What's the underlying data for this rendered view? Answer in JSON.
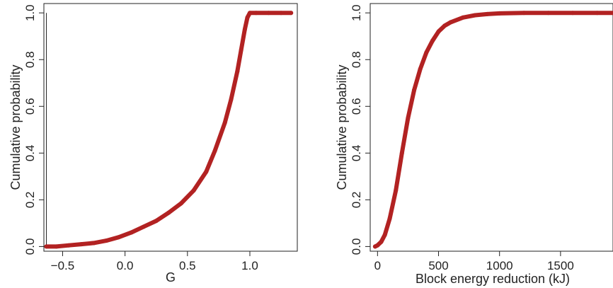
{
  "chart_data": [
    {
      "type": "line",
      "title": "",
      "xlabel": "G",
      "ylabel": "Cumulative probability",
      "xlim": [
        -0.65,
        1.38
      ],
      "ylim": [
        -0.02,
        1.04
      ],
      "xticks": [
        -0.5,
        0.0,
        0.5,
        1.0
      ],
      "xtick_labels": [
        "−0.5",
        "0.0",
        "0.5",
        "1.0"
      ],
      "yticks": [
        0.0,
        0.2,
        0.4,
        0.6,
        0.8,
        1.0
      ],
      "ytick_labels": [
        "0.0",
        "0.2",
        "0.4",
        "0.6",
        "0.8",
        "1.0"
      ],
      "grid": false,
      "series_color": "#b22222",
      "vertical_line_x": -0.63,
      "x": [
        -0.63,
        -0.55,
        -0.45,
        -0.35,
        -0.25,
        -0.15,
        -0.05,
        0.05,
        0.15,
        0.25,
        0.35,
        0.45,
        0.55,
        0.65,
        0.72,
        0.8,
        0.85,
        0.9,
        0.93,
        0.96,
        0.98,
        1.0,
        1.05,
        1.15,
        1.25,
        1.33
      ],
      "y": [
        0.0,
        0.0,
        0.005,
        0.01,
        0.015,
        0.025,
        0.04,
        0.06,
        0.085,
        0.11,
        0.145,
        0.185,
        0.24,
        0.32,
        0.41,
        0.53,
        0.63,
        0.75,
        0.84,
        0.93,
        0.98,
        1.0,
        1.0,
        1.0,
        1.0,
        1.0
      ]
    },
    {
      "type": "line",
      "title": "",
      "xlabel": "Block energy reduction (kJ)",
      "ylabel": "Cumulative probability",
      "xlim": [
        -60,
        1930
      ],
      "ylim": [
        -0.02,
        1.04
      ],
      "xticks": [
        0,
        500,
        1000,
        1500
      ],
      "xtick_labels": [
        "0",
        "500",
        "1000",
        "1500"
      ],
      "yticks": [
        0.0,
        0.2,
        0.4,
        0.6,
        0.8,
        1.0
      ],
      "ytick_labels": [
        "0.0",
        "0.2",
        "0.4",
        "0.6",
        "0.8",
        "1.0"
      ],
      "grid": false,
      "series_color": "#b22222",
      "x": [
        -20,
        0,
        30,
        60,
        100,
        150,
        200,
        250,
        300,
        350,
        400,
        450,
        500,
        550,
        600,
        700,
        800,
        900,
        1000,
        1200,
        1400,
        1600,
        1800,
        1930
      ],
      "y": [
        0.0,
        0.005,
        0.02,
        0.05,
        0.12,
        0.24,
        0.4,
        0.55,
        0.67,
        0.76,
        0.83,
        0.88,
        0.92,
        0.945,
        0.96,
        0.98,
        0.99,
        0.995,
        0.998,
        1.0,
        1.0,
        1.0,
        1.0,
        1.0
      ]
    }
  ]
}
